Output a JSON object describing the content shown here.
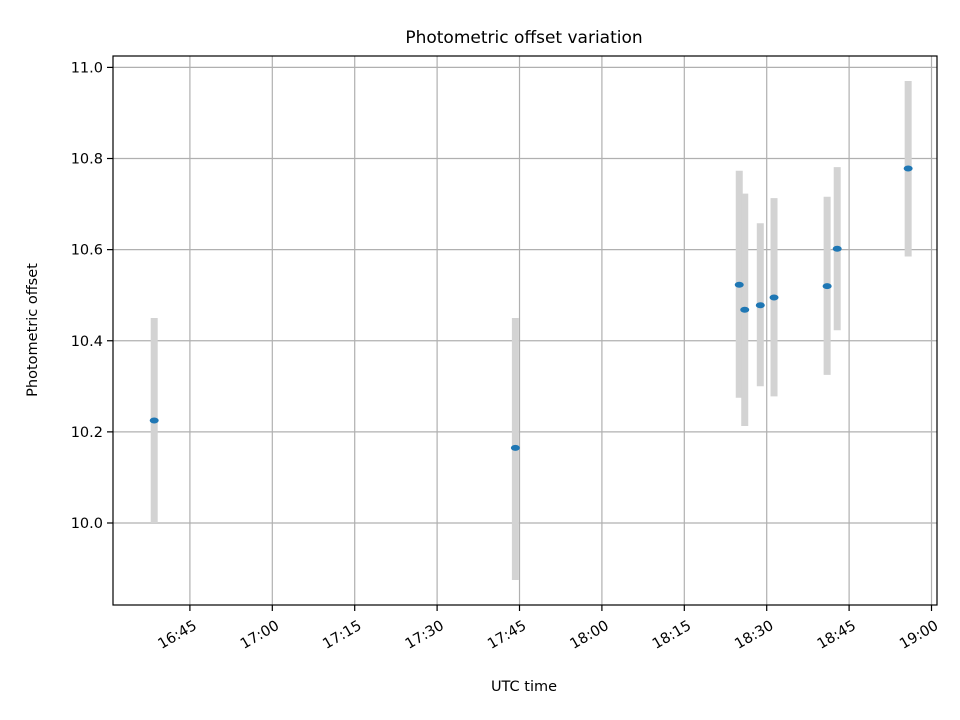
{
  "chart_data": {
    "type": "scatter",
    "title": "Photometric offset variation",
    "xlabel": "UTC time",
    "ylabel": "Photometric offset",
    "x_is_time": true,
    "xlim": [
      "16:31",
      "19:01"
    ],
    "ylim": [
      9.82,
      11.025
    ],
    "grid": true,
    "x_ticks": [
      "16:45",
      "17:00",
      "17:15",
      "17:30",
      "17:45",
      "18:00",
      "18:15",
      "18:30",
      "18:45",
      "19:00"
    ],
    "y_ticks": [
      "10.0",
      "10.2",
      "10.4",
      "10.6",
      "10.8",
      "11.0"
    ],
    "points": [
      {
        "x": "16:38:30",
        "y": 10.225,
        "err_low": 10.0,
        "err_high": 10.45
      },
      {
        "x": "17:44:15",
        "y": 10.165,
        "err_low": 9.875,
        "err_high": 10.45
      },
      {
        "x": "18:25:00",
        "y": 10.523,
        "err_low": 10.275,
        "err_high": 10.773
      },
      {
        "x": "18:26:00",
        "y": 10.468,
        "err_low": 10.213,
        "err_high": 10.723
      },
      {
        "x": "18:28:50",
        "y": 10.478,
        "err_low": 10.3,
        "err_high": 10.658
      },
      {
        "x": "18:31:20",
        "y": 10.495,
        "err_low": 10.278,
        "err_high": 10.713
      },
      {
        "x": "18:41:00",
        "y": 10.52,
        "err_low": 10.325,
        "err_high": 10.716
      },
      {
        "x": "18:42:50",
        "y": 10.602,
        "err_low": 10.423,
        "err_high": 10.781
      },
      {
        "x": "18:55:45",
        "y": 10.778,
        "err_low": 10.585,
        "err_high": 10.97
      }
    ],
    "colors": {
      "marker": "#1f77b4",
      "errorbar": "#d3d3d3",
      "grid": "#b0b0b0"
    }
  }
}
